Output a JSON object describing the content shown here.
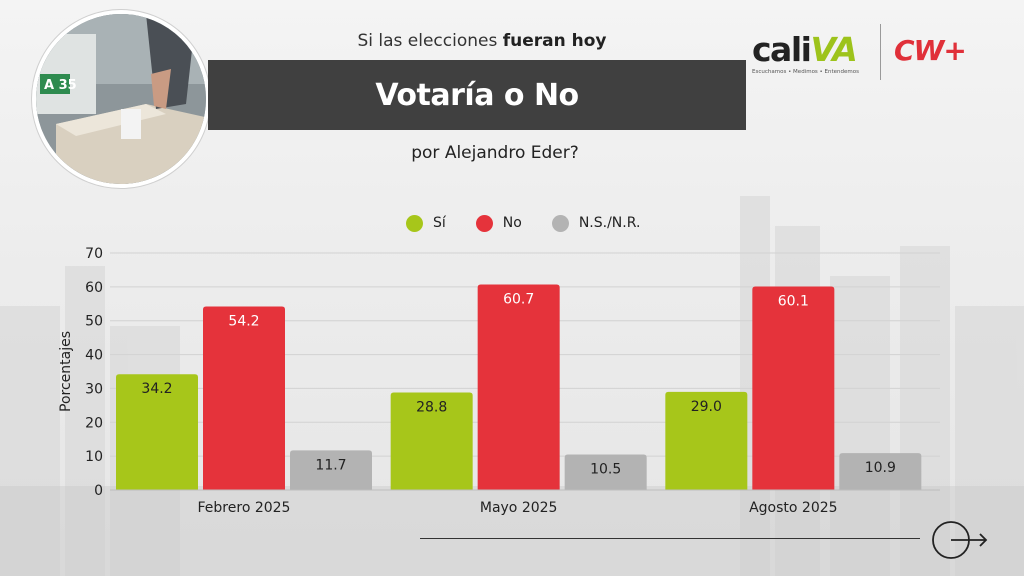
{
  "header": {
    "subtitle_top_plain": "Si las elecciones ",
    "subtitle_top_bold": "fueran hoy",
    "title": "Votaría o No",
    "subtitle_bottom": "por Alejandro Eder?"
  },
  "logos": {
    "caliva_main": "cali",
    "caliva_accent": "VA",
    "caliva_tagline": "Escuchamos • Medimos • Entendemos",
    "cw": "CW+"
  },
  "photo": {
    "box_label": "A 35"
  },
  "colors": {
    "si": "#a7c61a",
    "no": "#e5333b",
    "ns": "#b3b3b3",
    "title_bar": "#404040"
  },
  "chart_data": {
    "type": "bar",
    "categories": [
      "Febrero 2025",
      "Mayo 2025",
      "Agosto 2025"
    ],
    "series": [
      {
        "name": "Sí",
        "color": "#a7c61a",
        "values": [
          34.2,
          28.8,
          29.0
        ],
        "labels": [
          "34.2",
          "28.8",
          "29.0"
        ]
      },
      {
        "name": "No",
        "color": "#e5333b",
        "values": [
          54.2,
          60.7,
          60.1
        ],
        "labels": [
          "54.2",
          "60.7",
          "60.1"
        ]
      },
      {
        "name": "N.S./N.R.",
        "color": "#b3b3b3",
        "values": [
          11.7,
          10.5,
          10.9
        ],
        "labels": [
          "11.7",
          "10.5",
          "10.9"
        ]
      }
    ],
    "ylabel": "Porcentajes",
    "ylim": [
      0,
      70
    ],
    "yticks": [
      0,
      10,
      20,
      30,
      40,
      50,
      60,
      70
    ],
    "grid": true,
    "legend": "top-center"
  }
}
